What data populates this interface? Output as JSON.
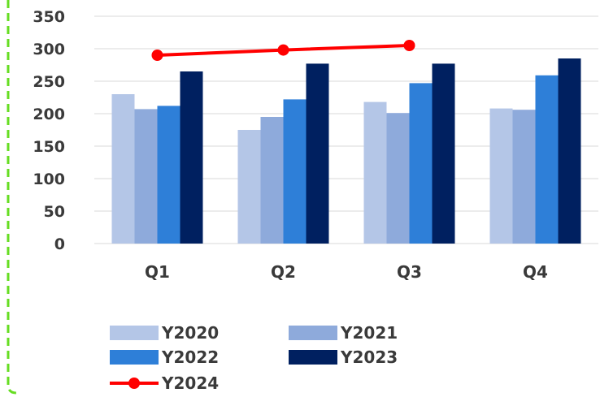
{
  "chart_data": {
    "type": "bar",
    "categories": [
      "Q1",
      "Q2",
      "Q3",
      "Q4"
    ],
    "series": [
      {
        "name": "Y2020",
        "kind": "bar",
        "color": "#b4c6e7",
        "values": [
          230,
          175,
          218,
          208
        ]
      },
      {
        "name": "Y2021",
        "kind": "bar",
        "color": "#8eaadb",
        "values": [
          207,
          195,
          201,
          206
        ]
      },
      {
        "name": "Y2022",
        "kind": "bar",
        "color": "#2e7fd8",
        "values": [
          212,
          222,
          247,
          259
        ]
      },
      {
        "name": "Y2023",
        "kind": "bar",
        "color": "#002060",
        "values": [
          265,
          277,
          277,
          285
        ]
      },
      {
        "name": "Y2024",
        "kind": "line",
        "color": "#ff0000",
        "values": [
          290,
          298,
          305,
          null
        ]
      }
    ],
    "ylim": [
      0,
      350
    ],
    "yticks": [
      0,
      50,
      100,
      150,
      200,
      250,
      300,
      350
    ],
    "grid": true,
    "legend_position": "bottom",
    "border_color": "#66dd22"
  }
}
